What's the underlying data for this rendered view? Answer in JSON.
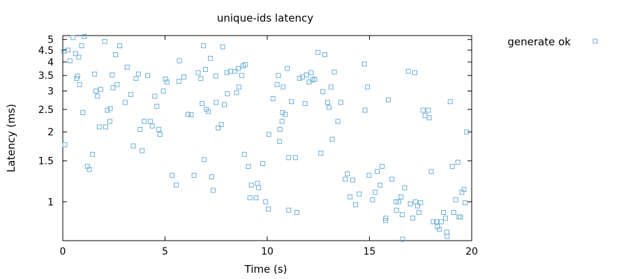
{
  "chart_data": {
    "type": "scatter",
    "title": "unique-ids latency",
    "xlabel": "Time (s)",
    "ylabel": "Latency (ms)",
    "xlim": [
      0,
      20
    ],
    "ylim": [
      0.68,
      5.2
    ],
    "yscale": "log",
    "grid": false,
    "legend_position": "top-right-outside",
    "x_ticks": [
      0,
      5,
      10,
      15,
      20
    ],
    "y_ticks": [
      1,
      1.5,
      2,
      2.5,
      3,
      3.5,
      4,
      4.5,
      5
    ],
    "x_tick_labels": [
      "0",
      "5",
      "10",
      "15",
      "20"
    ],
    "y_tick_labels": [
      "1",
      "1.5",
      "2",
      "2.5",
      "3",
      "3.5",
      "4",
      "4.5",
      "5"
    ],
    "series": [
      {
        "name": "generate ok",
        "color": "#6baed6",
        "marker": "open-square",
        "points": [
          [
            0.05,
            4.45
          ],
          [
            0.1,
            1.76
          ],
          [
            0.25,
            4.5
          ],
          [
            0.35,
            4.05
          ],
          [
            0.5,
            5.1
          ],
          [
            0.62,
            4.35
          ],
          [
            0.68,
            3.4
          ],
          [
            0.72,
            3.48
          ],
          [
            0.78,
            4.2
          ],
          [
            0.82,
            3.2
          ],
          [
            0.92,
            4.7
          ],
          [
            0.98,
            2.42
          ],
          [
            1.05,
            5.15
          ],
          [
            1.2,
            1.42
          ],
          [
            1.3,
            1.38
          ],
          [
            1.45,
            1.6
          ],
          [
            1.55,
            3.55
          ],
          [
            1.62,
            3.0
          ],
          [
            1.7,
            2.85
          ],
          [
            1.78,
            2.1
          ],
          [
            1.85,
            3.05
          ],
          [
            2.05,
            4.9
          ],
          [
            2.1,
            2.1
          ],
          [
            2.18,
            2.48
          ],
          [
            2.3,
            2.22
          ],
          [
            2.32,
            2.52
          ],
          [
            2.42,
            3.52
          ],
          [
            2.45,
            3.1
          ],
          [
            2.58,
            4.3
          ],
          [
            2.65,
            3.2
          ],
          [
            2.78,
            4.7
          ],
          [
            3.05,
            2.68
          ],
          [
            3.15,
            3.8
          ],
          [
            3.32,
            2.9
          ],
          [
            3.45,
            1.74
          ],
          [
            3.58,
            3.4
          ],
          [
            3.7,
            3.55
          ],
          [
            3.78,
            2.05
          ],
          [
            3.88,
            1.66
          ],
          [
            3.98,
            2.22
          ],
          [
            4.15,
            3.5
          ],
          [
            4.28,
            2.22
          ],
          [
            4.38,
            2.12
          ],
          [
            4.5,
            2.85
          ],
          [
            4.6,
            2.58
          ],
          [
            4.7,
            2.05
          ],
          [
            4.75,
            1.95
          ],
          [
            4.92,
            3.0
          ],
          [
            5.02,
            3.38
          ],
          [
            5.1,
            3.28
          ],
          [
            5.35,
            1.3
          ],
          [
            5.55,
            1.18
          ],
          [
            5.68,
            3.3
          ],
          [
            5.7,
            4.05
          ],
          [
            5.92,
            3.45
          ],
          [
            6.12,
            2.38
          ],
          [
            6.28,
            2.37
          ],
          [
            6.42,
            1.3
          ],
          [
            6.62,
            3.6
          ],
          [
            6.75,
            3.4
          ],
          [
            6.82,
            2.65
          ],
          [
            6.88,
            4.7
          ],
          [
            6.92,
            1.52
          ],
          [
            6.98,
            3.72
          ],
          [
            7.02,
            2.5
          ],
          [
            7.12,
            2.45
          ],
          [
            7.22,
            4.15
          ],
          [
            7.28,
            1.28
          ],
          [
            7.35,
            1.12
          ],
          [
            7.48,
            3.48
          ],
          [
            7.5,
            2.68
          ],
          [
            7.6,
            2.08
          ],
          [
            7.75,
            2.15
          ],
          [
            7.82,
            4.65
          ],
          [
            7.9,
            2.62
          ],
          [
            8.02,
            3.6
          ],
          [
            8.05,
            2.92
          ],
          [
            8.2,
            3.65
          ],
          [
            8.42,
            3.65
          ],
          [
            8.5,
            2.95
          ],
          [
            8.58,
            3.75
          ],
          [
            8.62,
            3.12
          ],
          [
            8.75,
            3.5
          ],
          [
            8.82,
            3.85
          ],
          [
            8.88,
            1.6
          ],
          [
            8.92,
            3.9
          ],
          [
            9.08,
            1.42
          ],
          [
            9.15,
            1.04
          ],
          [
            9.22,
            1.18
          ],
          [
            9.45,
            1.04
          ],
          [
            9.52,
            1.2
          ],
          [
            9.58,
            1.15
          ],
          [
            9.78,
            1.46
          ],
          [
            9.92,
            1.0
          ],
          [
            10.05,
            0.93
          ],
          [
            10.08,
            1.95
          ],
          [
            10.28,
            2.78
          ],
          [
            10.48,
            3.2
          ],
          [
            10.55,
            3.5
          ],
          [
            10.6,
            1.82
          ],
          [
            10.62,
            2.05
          ],
          [
            10.72,
            2.22
          ],
          [
            10.75,
            2.42
          ],
          [
            10.78,
            3.12
          ],
          [
            10.88,
            2.38
          ],
          [
            10.98,
            3.75
          ],
          [
            11.05,
            0.92
          ],
          [
            11.05,
            1.55
          ],
          [
            11.18,
            2.7
          ],
          [
            11.38,
            1.55
          ],
          [
            11.45,
            0.9
          ],
          [
            11.58,
            3.4
          ],
          [
            11.72,
            3.45
          ],
          [
            11.85,
            2.65
          ],
          [
            11.92,
            3.52
          ],
          [
            12.05,
            3.28
          ],
          [
            12.15,
            3.6
          ],
          [
            12.22,
            3.35
          ],
          [
            12.32,
            3.38
          ],
          [
            12.48,
            4.4
          ],
          [
            12.62,
            1.62
          ],
          [
            12.72,
            2.98
          ],
          [
            12.82,
            4.3
          ],
          [
            12.95,
            2.68
          ],
          [
            13.02,
            2.55
          ],
          [
            13.12,
            3.12
          ],
          [
            13.18,
            1.86
          ],
          [
            13.28,
            3.62
          ],
          [
            13.45,
            2.22
          ],
          [
            13.6,
            2.68
          ],
          [
            13.82,
            1.25
          ],
          [
            13.92,
            1.32
          ],
          [
            14.05,
            1.05
          ],
          [
            14.18,
            1.24
          ],
          [
            14.32,
            0.97
          ],
          [
            14.5,
            1.08
          ],
          [
            14.75,
            3.92
          ],
          [
            14.78,
            2.48
          ],
          [
            14.9,
            3.12
          ],
          [
            14.98,
            1.3
          ],
          [
            15.15,
            1.02
          ],
          [
            15.28,
            1.1
          ],
          [
            15.38,
            1.35
          ],
          [
            15.52,
            1.18
          ],
          [
            15.62,
            1.42
          ],
          [
            15.78,
            0.83
          ],
          [
            15.8,
            0.85
          ],
          [
            15.92,
            2.75
          ],
          [
            16.1,
            1.25
          ],
          [
            16.3,
            1.0
          ],
          [
            16.32,
            0.92
          ],
          [
            16.42,
            1.0
          ],
          [
            16.55,
            1.05
          ],
          [
            16.6,
            0.88
          ],
          [
            16.62,
            0.69
          ],
          [
            16.72,
            1.15
          ],
          [
            16.9,
            3.65
          ],
          [
            17.0,
            0.98
          ],
          [
            17.12,
            0.85
          ],
          [
            17.22,
            3.6
          ],
          [
            17.25,
            1.0
          ],
          [
            17.35,
            0.96
          ],
          [
            17.42,
            0.9
          ],
          [
            17.5,
            0.99
          ],
          [
            17.62,
            2.48
          ],
          [
            17.72,
            2.35
          ],
          [
            17.88,
            2.48
          ],
          [
            17.92,
            2.3
          ],
          [
            18.02,
            1.35
          ],
          [
            18.12,
            0.82
          ],
          [
            18.28,
            0.82
          ],
          [
            18.32,
            0.78
          ],
          [
            18.42,
            0.76
          ],
          [
            18.52,
            0.82
          ],
          [
            18.62,
            0.9
          ],
          [
            18.72,
            0.85
          ],
          [
            18.78,
            0.74
          ],
          [
            18.8,
            0.71
          ],
          [
            18.95,
            2.7
          ],
          [
            19.05,
            1.42
          ],
          [
            19.12,
            0.9
          ],
          [
            19.22,
            1.02
          ],
          [
            19.32,
            1.48
          ],
          [
            19.38,
            0.86
          ],
          [
            19.45,
            0.86
          ],
          [
            19.52,
            1.1
          ],
          [
            19.62,
            1.13
          ],
          [
            19.68,
            0.99
          ],
          [
            19.75,
            2.0
          ]
        ]
      }
    ]
  }
}
